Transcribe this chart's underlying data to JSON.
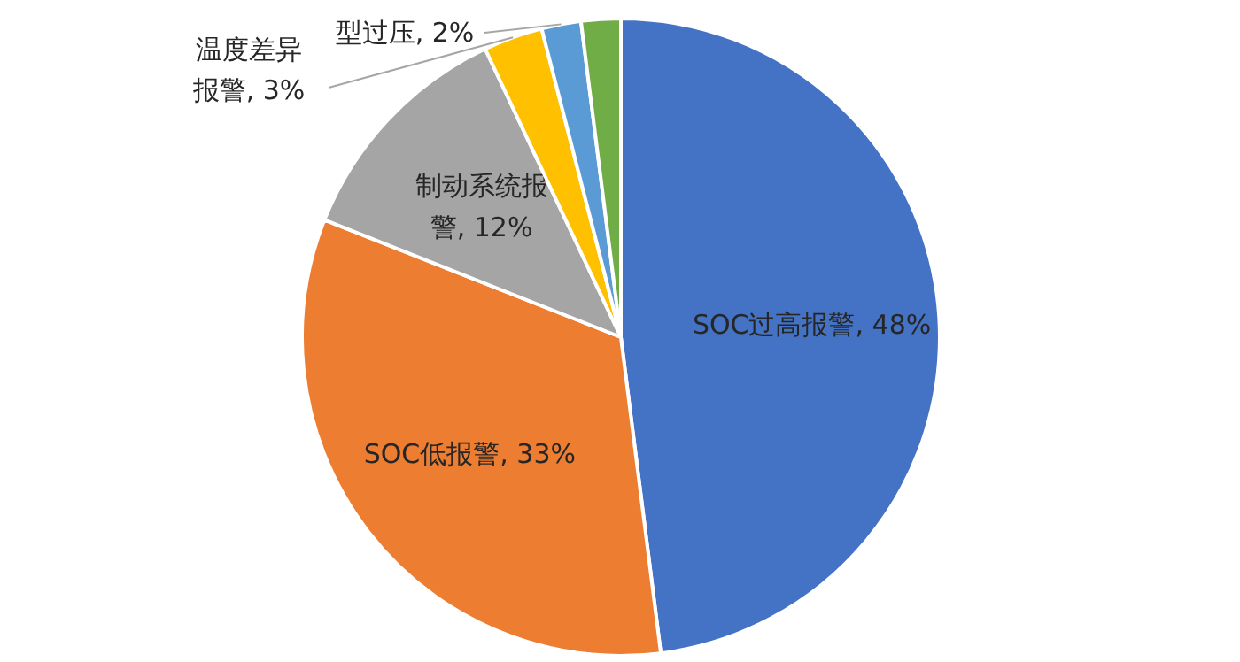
{
  "chart_data": {
    "type": "pie",
    "categories": [
      "SOC过高报警",
      "SOC低报警",
      "制动系统报警",
      "温度差异报警",
      "型过压",
      null
    ],
    "values": [
      48,
      33,
      12,
      3,
      2,
      2
    ],
    "colors": [
      "#4472c4",
      "#ed7d31",
      "#a5a5a5",
      "#ffc000",
      "#5b9bd5",
      "#70ad47"
    ],
    "value_labels": [
      "48%",
      "33%",
      "12%",
      "3%",
      "2%",
      null
    ]
  }
}
